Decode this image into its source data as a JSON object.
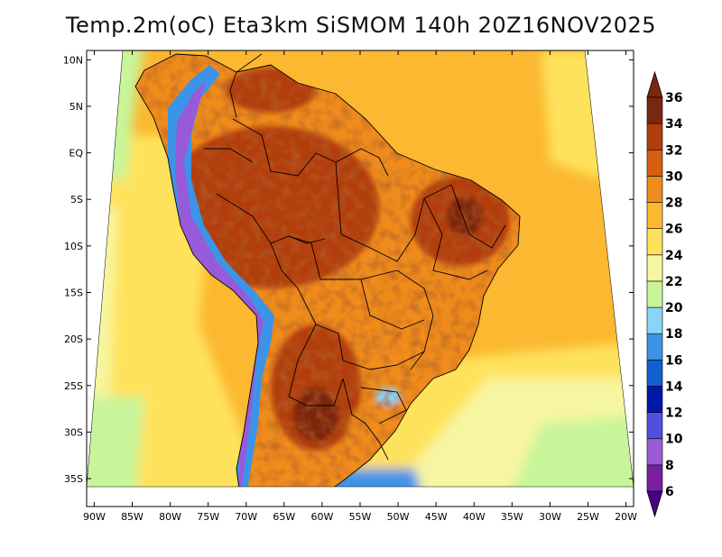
{
  "title": "Temp.2m(oC) Eta3km SiSMOM 140h 20Z16NOV2025",
  "map": {
    "lon_range": [
      -91,
      -19
    ],
    "lat_range": [
      -38,
      11
    ],
    "lat_ticks": [
      {
        "value": 10,
        "label": "10N"
      },
      {
        "value": 5,
        "label": "5N"
      },
      {
        "value": 0,
        "label": "EQ"
      },
      {
        "value": -5,
        "label": "5S"
      },
      {
        "value": -10,
        "label": "10S"
      },
      {
        "value": -15,
        "label": "15S"
      },
      {
        "value": -20,
        "label": "20S"
      },
      {
        "value": -25,
        "label": "25S"
      },
      {
        "value": -30,
        "label": "30S"
      },
      {
        "value": -35,
        "label": "35S"
      }
    ],
    "lon_ticks": [
      {
        "value": -90,
        "label": "90W"
      },
      {
        "value": -85,
        "label": "85W"
      },
      {
        "value": -80,
        "label": "80W"
      },
      {
        "value": -75,
        "label": "75W"
      },
      {
        "value": -70,
        "label": "70W"
      },
      {
        "value": -65,
        "label": "65W"
      },
      {
        "value": -60,
        "label": "60W"
      },
      {
        "value": -55,
        "label": "55W"
      },
      {
        "value": -50,
        "label": "50W"
      },
      {
        "value": -45,
        "label": "45W"
      },
      {
        "value": -40,
        "label": "40W"
      },
      {
        "value": -35,
        "label": "35W"
      },
      {
        "value": -30,
        "label": "30W"
      },
      {
        "value": -25,
        "label": "25W"
      },
      {
        "value": -20,
        "label": "20W"
      }
    ]
  },
  "colorbar": {
    "levels": [
      {
        "value": 6,
        "label": "6",
        "color": "#4b0082"
      },
      {
        "value": 8,
        "label": "8",
        "color": "#7b1fa2"
      },
      {
        "value": 10,
        "label": "10",
        "color": "#9c5bd6"
      },
      {
        "value": 12,
        "label": "12",
        "color": "#5050e0"
      },
      {
        "value": 14,
        "label": "14",
        "color": "#0018a8"
      },
      {
        "value": 16,
        "label": "16",
        "color": "#1060d0"
      },
      {
        "value": 18,
        "label": "18",
        "color": "#3c94e8"
      },
      {
        "value": 20,
        "label": "20",
        "color": "#8ad4f8"
      },
      {
        "value": 22,
        "label": "22",
        "color": "#c8f59a"
      },
      {
        "value": 24,
        "label": "24",
        "color": "#f6f6a0"
      },
      {
        "value": 26,
        "label": "26",
        "color": "#ffe25c"
      },
      {
        "value": 28,
        "label": "28",
        "color": "#fbb830"
      },
      {
        "value": 30,
        "label": "30",
        "color": "#f08c1c"
      },
      {
        "value": 32,
        "label": "32",
        "color": "#d85e10"
      },
      {
        "value": 34,
        "label": "34",
        "color": "#b23e0e"
      },
      {
        "value": 36,
        "label": "36",
        "color": "#7a2710"
      }
    ],
    "extend": "both"
  },
  "colors": {
    "ocean_warm": "#fbb830",
    "ocean_mild": "#ffe25c",
    "ocean_cool": "#f6f6a0",
    "ocean_cold": "#c8f59a",
    "land_hot": "#d85e10",
    "land_very_hot": "#b23e0e",
    "land_extreme": "#7a2710",
    "andes_cold": "#9c5bd6",
    "boundary": "#000000"
  }
}
